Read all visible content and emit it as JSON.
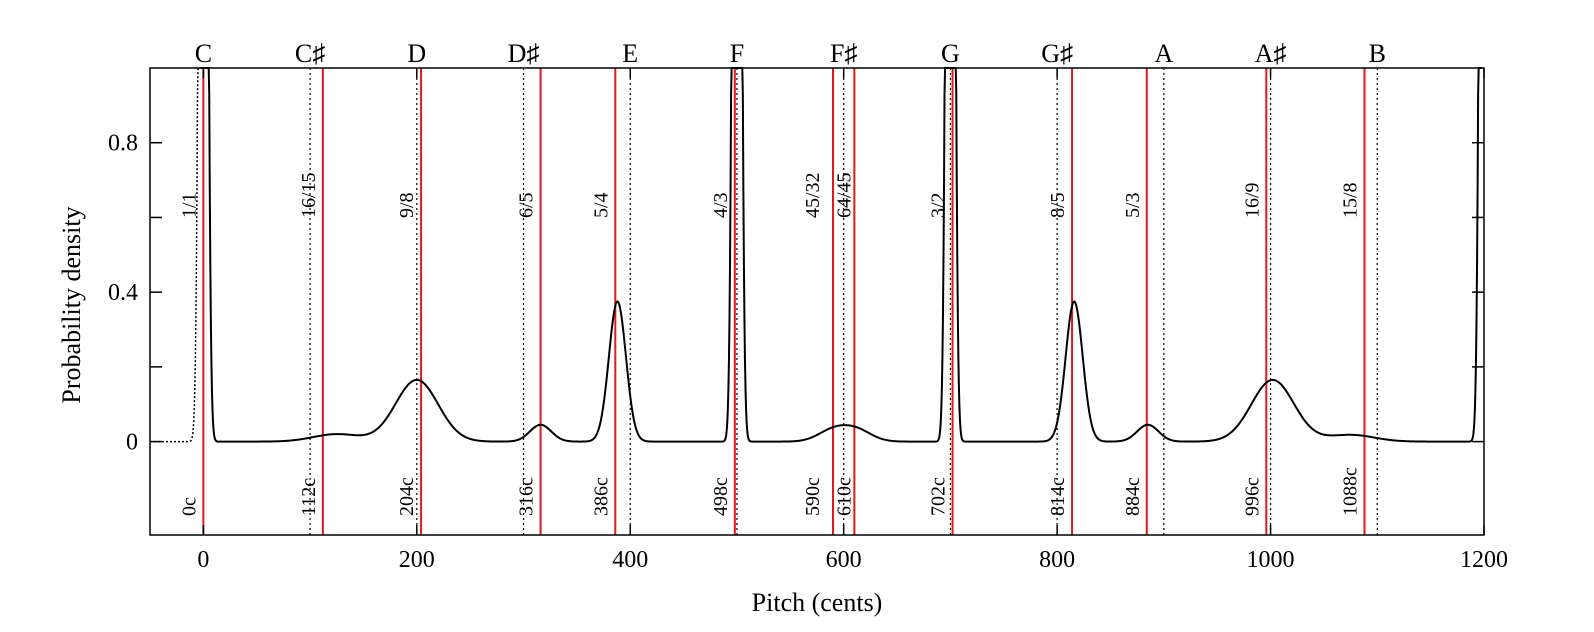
{
  "chart_data": {
    "type": "line",
    "xlabel": "Pitch (cents)",
    "ylabel": "Probability density",
    "xlim": [
      -50,
      1200
    ],
    "ylim": [
      -0.25,
      1.0
    ],
    "x_ticks": [
      0,
      200,
      400,
      600,
      800,
      1000,
      1200
    ],
    "x_tick_labels": [
      "0",
      "200",
      "400",
      "600",
      "800",
      "1000",
      "1200"
    ],
    "y_ticks": [
      0,
      0.2,
      0.4,
      0.6,
      0.8
    ],
    "y_tick_labels": [
      "0",
      "",
      "0.4",
      "",
      "0.8"
    ],
    "grid": false,
    "notes": [
      {
        "label": "C",
        "x": 0
      },
      {
        "label": "C♯",
        "x": 100
      },
      {
        "label": "D",
        "x": 200
      },
      {
        "label": "D♯",
        "x": 300
      },
      {
        "label": "E",
        "x": 400
      },
      {
        "label": "F",
        "x": 500
      },
      {
        "label": "F♯",
        "x": 600
      },
      {
        "label": "G",
        "x": 700
      },
      {
        "label": "G♯",
        "x": 800
      },
      {
        "label": "A",
        "x": 900
      },
      {
        "label": "A♯",
        "x": 1000
      },
      {
        "label": "B",
        "x": 1100
      }
    ],
    "equal_tempered_lines": [
      0,
      100,
      200,
      300,
      400,
      500,
      600,
      700,
      800,
      900,
      1000,
      1100
    ],
    "just_intervals": [
      {
        "ratio": "1/1",
        "cents": 0,
        "label": "0c"
      },
      {
        "ratio": "16/15",
        "cents": 112,
        "label": "112c"
      },
      {
        "ratio": "9/8",
        "cents": 204,
        "label": "204c"
      },
      {
        "ratio": "6/5",
        "cents": 316,
        "label": "316c"
      },
      {
        "ratio": "5/4",
        "cents": 386,
        "label": "386c"
      },
      {
        "ratio": "4/3",
        "cents": 498,
        "label": "498c"
      },
      {
        "ratio": "45/32",
        "cents": 590,
        "label": "590c"
      },
      {
        "ratio": "64/45",
        "cents": 610,
        "label": "610c"
      },
      {
        "ratio": "3/2",
        "cents": 702,
        "label": "702c"
      },
      {
        "ratio": "8/5",
        "cents": 814,
        "label": "814c"
      },
      {
        "ratio": "5/3",
        "cents": 884,
        "label": "884c"
      },
      {
        "ratio": "16/9",
        "cents": 996,
        "label": "996c"
      },
      {
        "ratio": "15/8",
        "cents": 1088,
        "label": "1088c"
      }
    ],
    "density_peaks": [
      {
        "x": 0,
        "height": 5.0,
        "width": 3
      },
      {
        "x": 125,
        "height": 0.02,
        "width": 22
      },
      {
        "x": 200,
        "height": 0.165,
        "width": 20
      },
      {
        "x": 316,
        "height": 0.045,
        "width": 10
      },
      {
        "x": 388,
        "height": 0.375,
        "width": 8
      },
      {
        "x": 500,
        "height": 5.0,
        "width": 3
      },
      {
        "x": 590,
        "height": 0.03,
        "width": 14
      },
      {
        "x": 612,
        "height": 0.03,
        "width": 14
      },
      {
        "x": 700,
        "height": 5.0,
        "width": 3
      },
      {
        "x": 816,
        "height": 0.375,
        "width": 8
      },
      {
        "x": 885,
        "height": 0.045,
        "width": 10
      },
      {
        "x": 1002,
        "height": 0.165,
        "width": 20
      },
      {
        "x": 1075,
        "height": 0.018,
        "width": 22
      },
      {
        "x": 1200,
        "height": 5.0,
        "width": 3
      }
    ],
    "colors": {
      "density": "#000000",
      "just": "#e0191f",
      "tempered": "#000000",
      "axis": "#000000"
    }
  }
}
